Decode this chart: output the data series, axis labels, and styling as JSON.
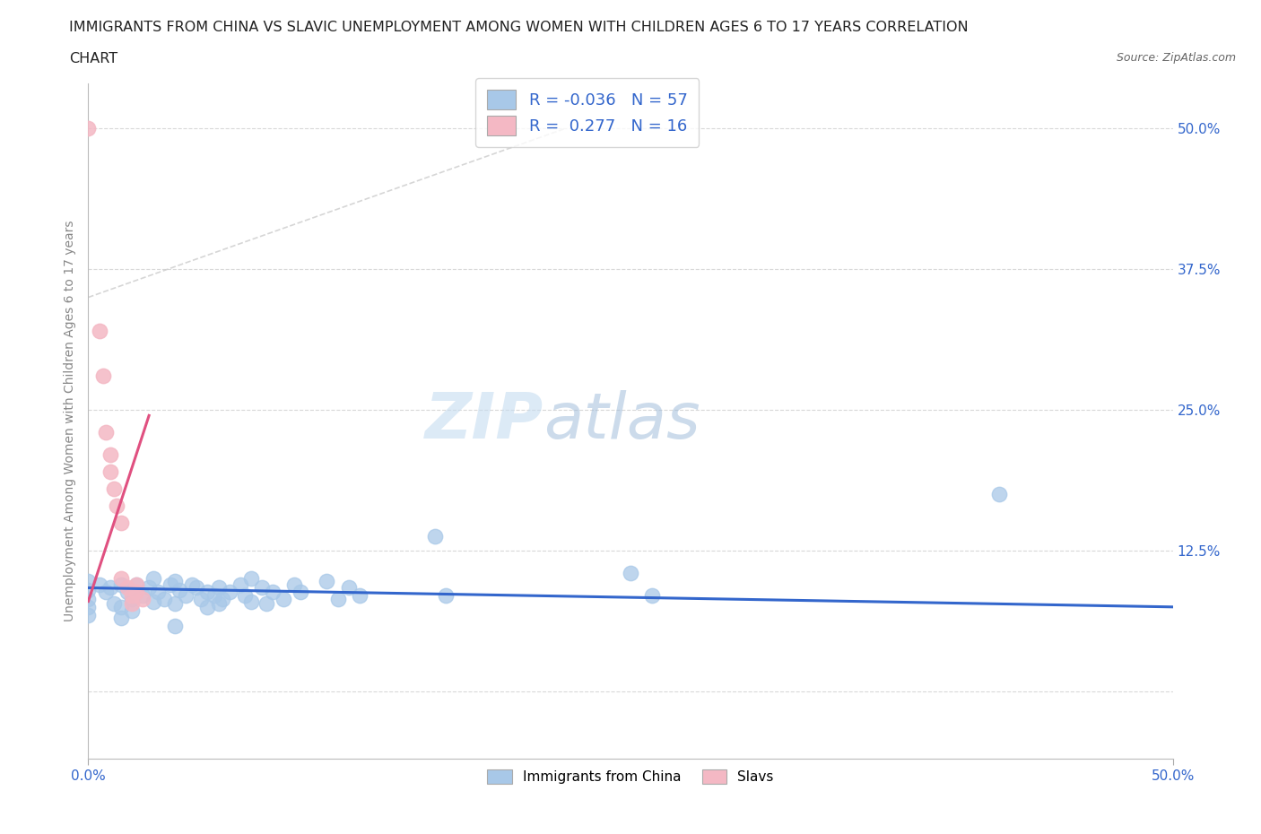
{
  "title_line1": "IMMIGRANTS FROM CHINA VS SLAVIC UNEMPLOYMENT AMONG WOMEN WITH CHILDREN AGES 6 TO 17 YEARS CORRELATION",
  "title_line2": "CHART",
  "source": "Source: ZipAtlas.com",
  "ylabel": "Unemployment Among Women with Children Ages 6 to 17 years",
  "ytick_values": [
    0.0,
    0.125,
    0.25,
    0.375,
    0.5
  ],
  "xlim": [
    0.0,
    0.5
  ],
  "ylim": [
    -0.06,
    0.54
  ],
  "legend_entries": [
    {
      "color": "#a8c8e8",
      "R": "-0.036",
      "N": "57",
      "label": "Immigrants from China"
    },
    {
      "color": "#f4b8c4",
      "R": "0.277",
      "N": "16",
      "label": "Slavs"
    }
  ],
  "watermark_zip": "ZIP",
  "watermark_atlas": "atlas",
  "china_scatter": [
    [
      0.0,
      0.098
    ],
    [
      0.0,
      0.082
    ],
    [
      0.0,
      0.09
    ],
    [
      0.0,
      0.075
    ],
    [
      0.0,
      0.068
    ],
    [
      0.005,
      0.095
    ],
    [
      0.008,
      0.088
    ],
    [
      0.01,
      0.092
    ],
    [
      0.012,
      0.078
    ],
    [
      0.015,
      0.095
    ],
    [
      0.015,
      0.075
    ],
    [
      0.015,
      0.065
    ],
    [
      0.018,
      0.088
    ],
    [
      0.02,
      0.082
    ],
    [
      0.02,
      0.072
    ],
    [
      0.022,
      0.095
    ],
    [
      0.025,
      0.085
    ],
    [
      0.028,
      0.092
    ],
    [
      0.03,
      0.1
    ],
    [
      0.03,
      0.08
    ],
    [
      0.032,
      0.088
    ],
    [
      0.035,
      0.082
    ],
    [
      0.038,
      0.095
    ],
    [
      0.04,
      0.098
    ],
    [
      0.04,
      0.078
    ],
    [
      0.04,
      0.058
    ],
    [
      0.042,
      0.09
    ],
    [
      0.045,
      0.085
    ],
    [
      0.048,
      0.095
    ],
    [
      0.05,
      0.092
    ],
    [
      0.052,
      0.082
    ],
    [
      0.055,
      0.088
    ],
    [
      0.055,
      0.075
    ],
    [
      0.058,
      0.085
    ],
    [
      0.06,
      0.092
    ],
    [
      0.06,
      0.078
    ],
    [
      0.062,
      0.082
    ],
    [
      0.065,
      0.088
    ],
    [
      0.07,
      0.095
    ],
    [
      0.072,
      0.085
    ],
    [
      0.075,
      0.1
    ],
    [
      0.075,
      0.08
    ],
    [
      0.08,
      0.092
    ],
    [
      0.082,
      0.078
    ],
    [
      0.085,
      0.088
    ],
    [
      0.09,
      0.082
    ],
    [
      0.095,
      0.095
    ],
    [
      0.098,
      0.088
    ],
    [
      0.11,
      0.098
    ],
    [
      0.115,
      0.082
    ],
    [
      0.12,
      0.092
    ],
    [
      0.125,
      0.085
    ],
    [
      0.16,
      0.138
    ],
    [
      0.165,
      0.085
    ],
    [
      0.25,
      0.105
    ],
    [
      0.26,
      0.085
    ],
    [
      0.42,
      0.175
    ]
  ],
  "slavic_scatter": [
    [
      0.0,
      0.5
    ],
    [
      0.005,
      0.32
    ],
    [
      0.007,
      0.28
    ],
    [
      0.008,
      0.23
    ],
    [
      0.01,
      0.21
    ],
    [
      0.01,
      0.195
    ],
    [
      0.012,
      0.18
    ],
    [
      0.013,
      0.165
    ],
    [
      0.015,
      0.15
    ],
    [
      0.015,
      0.1
    ],
    [
      0.018,
      0.092
    ],
    [
      0.02,
      0.085
    ],
    [
      0.02,
      0.078
    ],
    [
      0.022,
      0.095
    ],
    [
      0.022,
      0.088
    ],
    [
      0.025,
      0.082
    ]
  ],
  "china_line_x": [
    0.0,
    0.5
  ],
  "china_line_y": [
    0.092,
    0.075
  ],
  "slavic_line_x": [
    0.0,
    0.028
  ],
  "slavic_line_y": [
    0.08,
    0.245
  ],
  "bg_color": "#ffffff",
  "grid_color": "#d8d8d8",
  "china_color": "#a8c8e8",
  "slavic_color": "#f4b8c4",
  "china_line_color": "#3366cc",
  "slavic_line_color": "#e05080",
  "diag_color": "#cccccc"
}
